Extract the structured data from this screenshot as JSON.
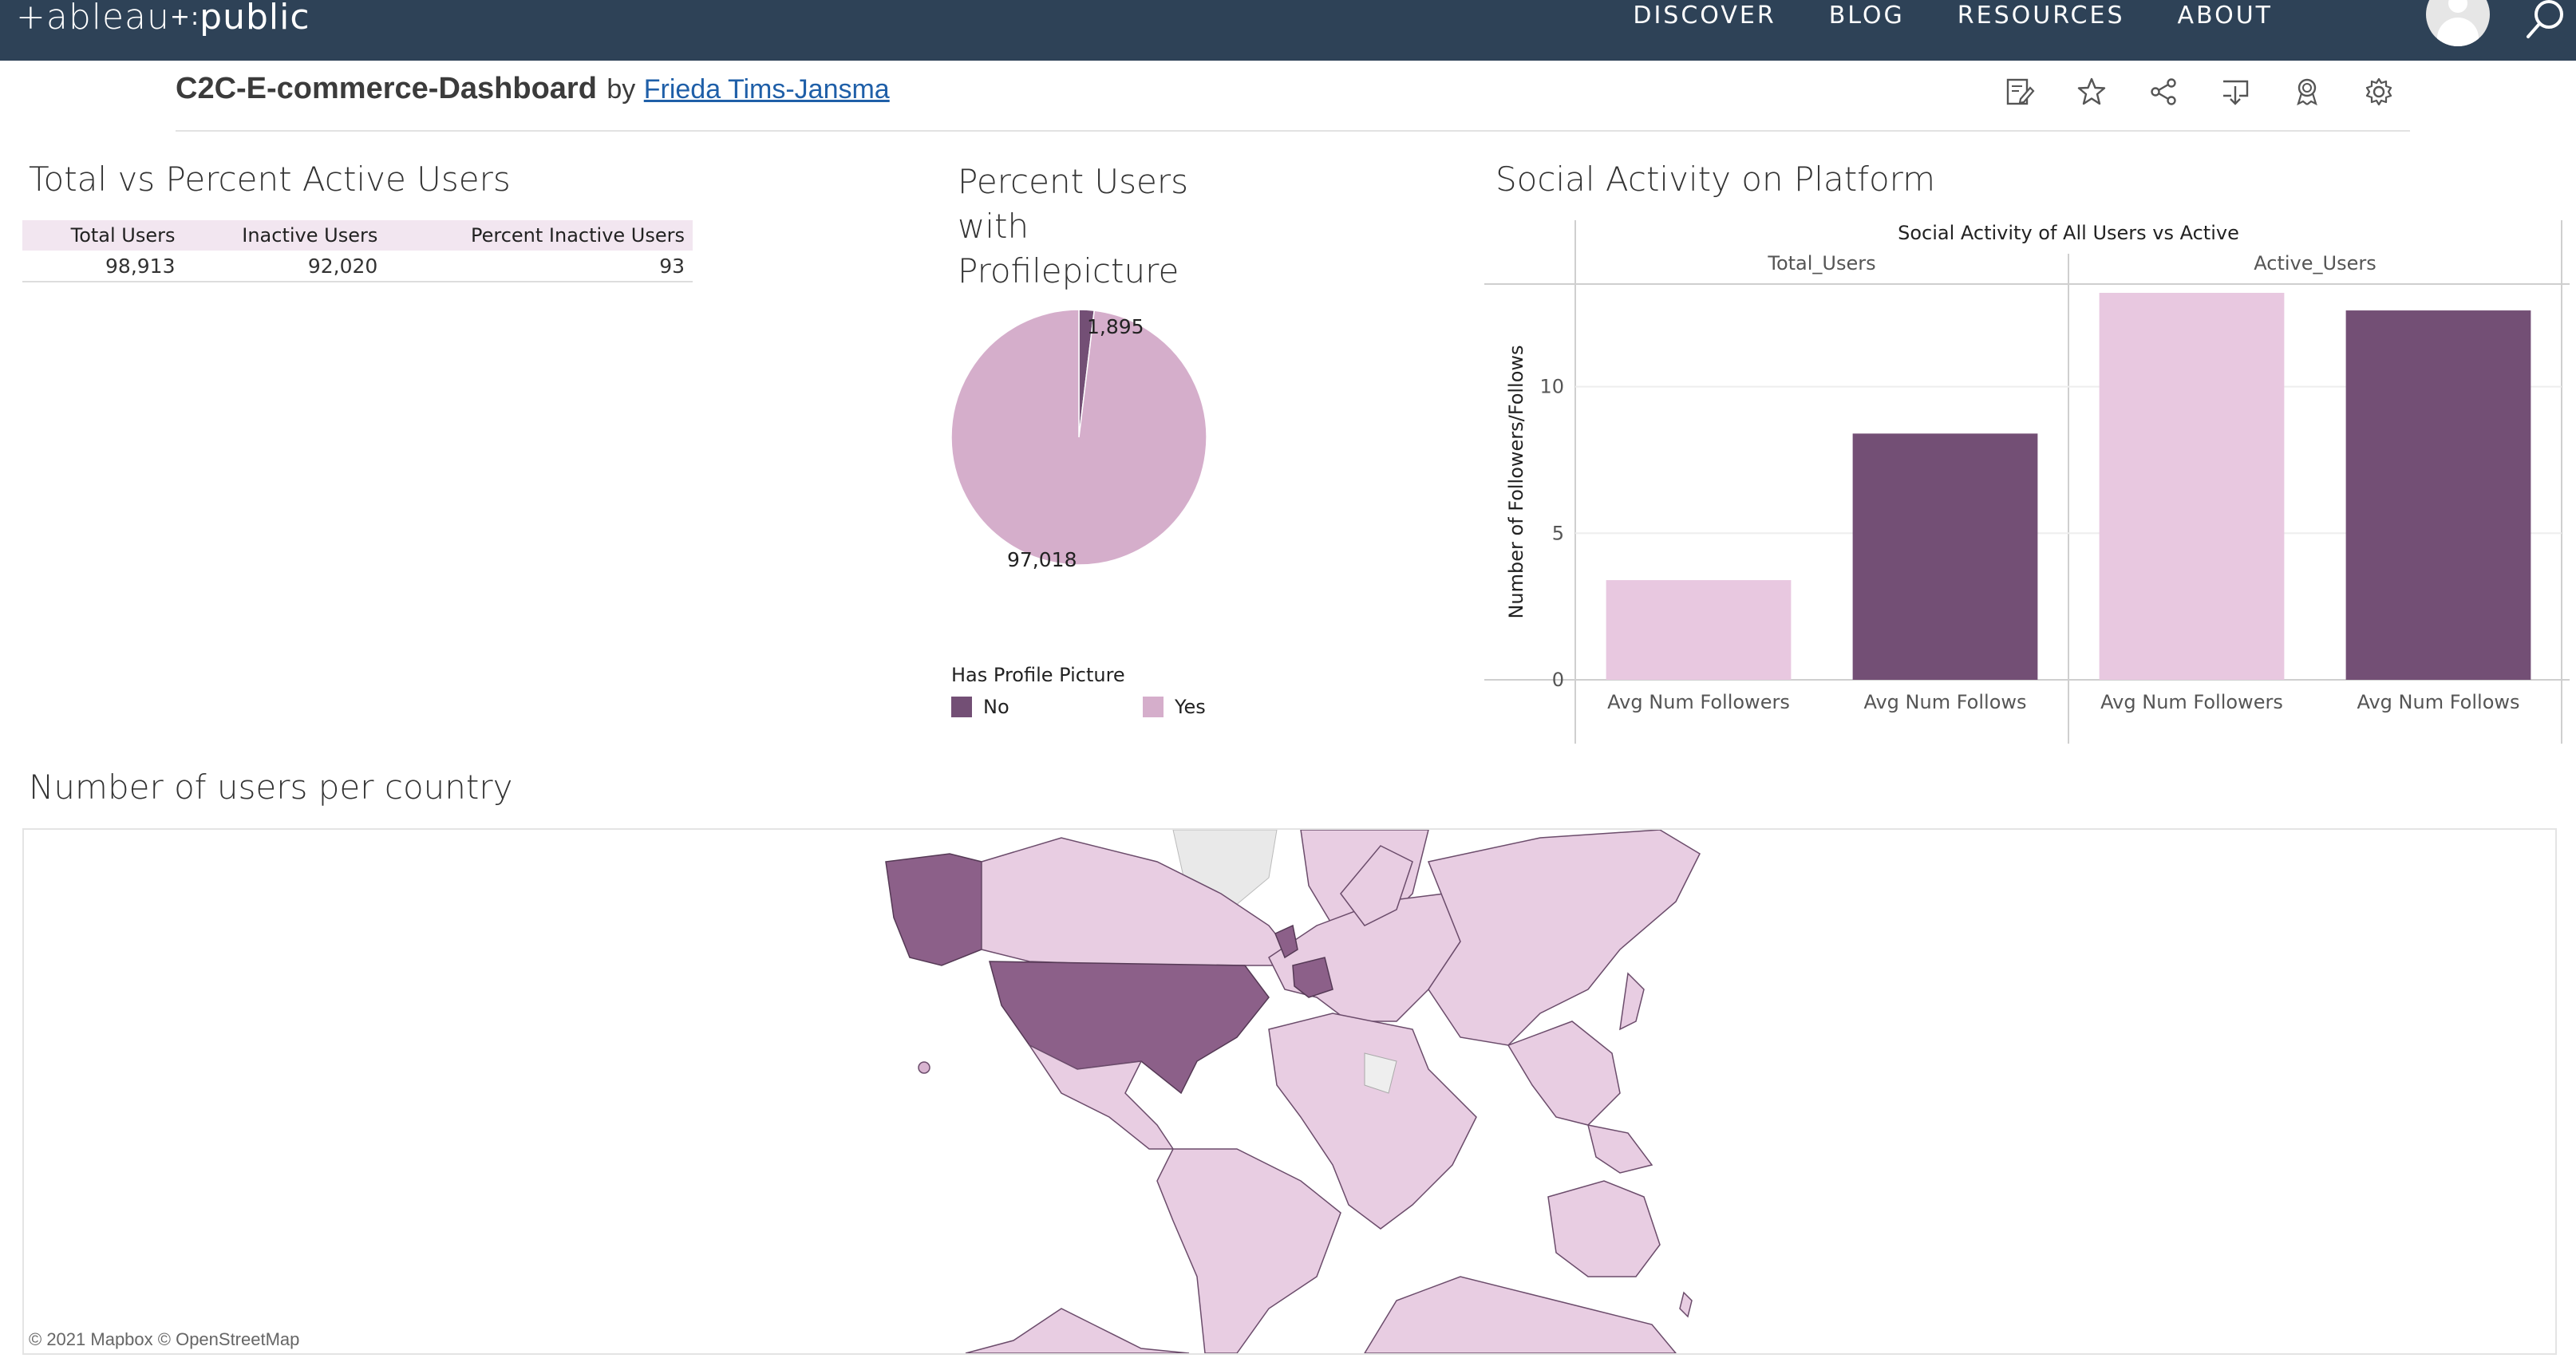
{
  "nav": {
    "logo": "+ableau",
    "logo_dots": "+:",
    "logo_suffix": "public",
    "links": [
      "DISCOVER",
      "BLOG",
      "RESOURCES",
      "ABOUT"
    ]
  },
  "viz": {
    "title": "C2C-E-commerce-Dashboard",
    "by": "by",
    "author": "Frieda Tims-Jansma",
    "toolbar_icons": [
      "edit-icon",
      "star-icon",
      "share-icon",
      "download-icon",
      "badge-icon",
      "gear-icon"
    ]
  },
  "table_sheet": {
    "title": "Total vs Percent Active Users",
    "headers": [
      "Total Users",
      "Inactive Users",
      "Percent Inactive Users"
    ],
    "row": [
      "98,913",
      "92,020",
      "93"
    ]
  },
  "pie_sheet": {
    "title_lines": [
      "Percent Users",
      "with",
      "Profilepicture"
    ],
    "legend_title": "Has Profile Picture",
    "legend": [
      {
        "label": "No",
        "color": "#734f75"
      },
      {
        "label": "Yes",
        "color": "#d5aecb"
      }
    ]
  },
  "bar_sheet": {
    "title": "Social Activity on Platform"
  },
  "map_sheet": {
    "title": "Number of users per country",
    "attribution": "© 2021 Mapbox  © OpenStreetMap"
  },
  "chart_data": [
    {
      "type": "pie",
      "labels": [
        "No",
        "Yes"
      ],
      "values": [
        1895,
        97018
      ],
      "value_labels": [
        "1,895",
        "97,018"
      ],
      "colors": [
        "#734f75",
        "#d5aecb"
      ]
    },
    {
      "type": "bar",
      "title": "Social Activity of All Users vs Active",
      "panels": [
        "Total_Users",
        "Active_Users"
      ],
      "categories": [
        "Avg Num Followers",
        "Avg Num Follows"
      ],
      "series": [
        {
          "panel": "Total_Users",
          "values": [
            3.4,
            8.4
          ]
        },
        {
          "panel": "Active_Users",
          "values": [
            13.2,
            12.6
          ]
        }
      ],
      "colors": [
        "#e8c8e0",
        "#734f75"
      ],
      "ylabel": "Number of Followers/Follows",
      "ylim": [
        0,
        13.5
      ],
      "yticks": [
        0,
        5,
        10
      ]
    }
  ]
}
